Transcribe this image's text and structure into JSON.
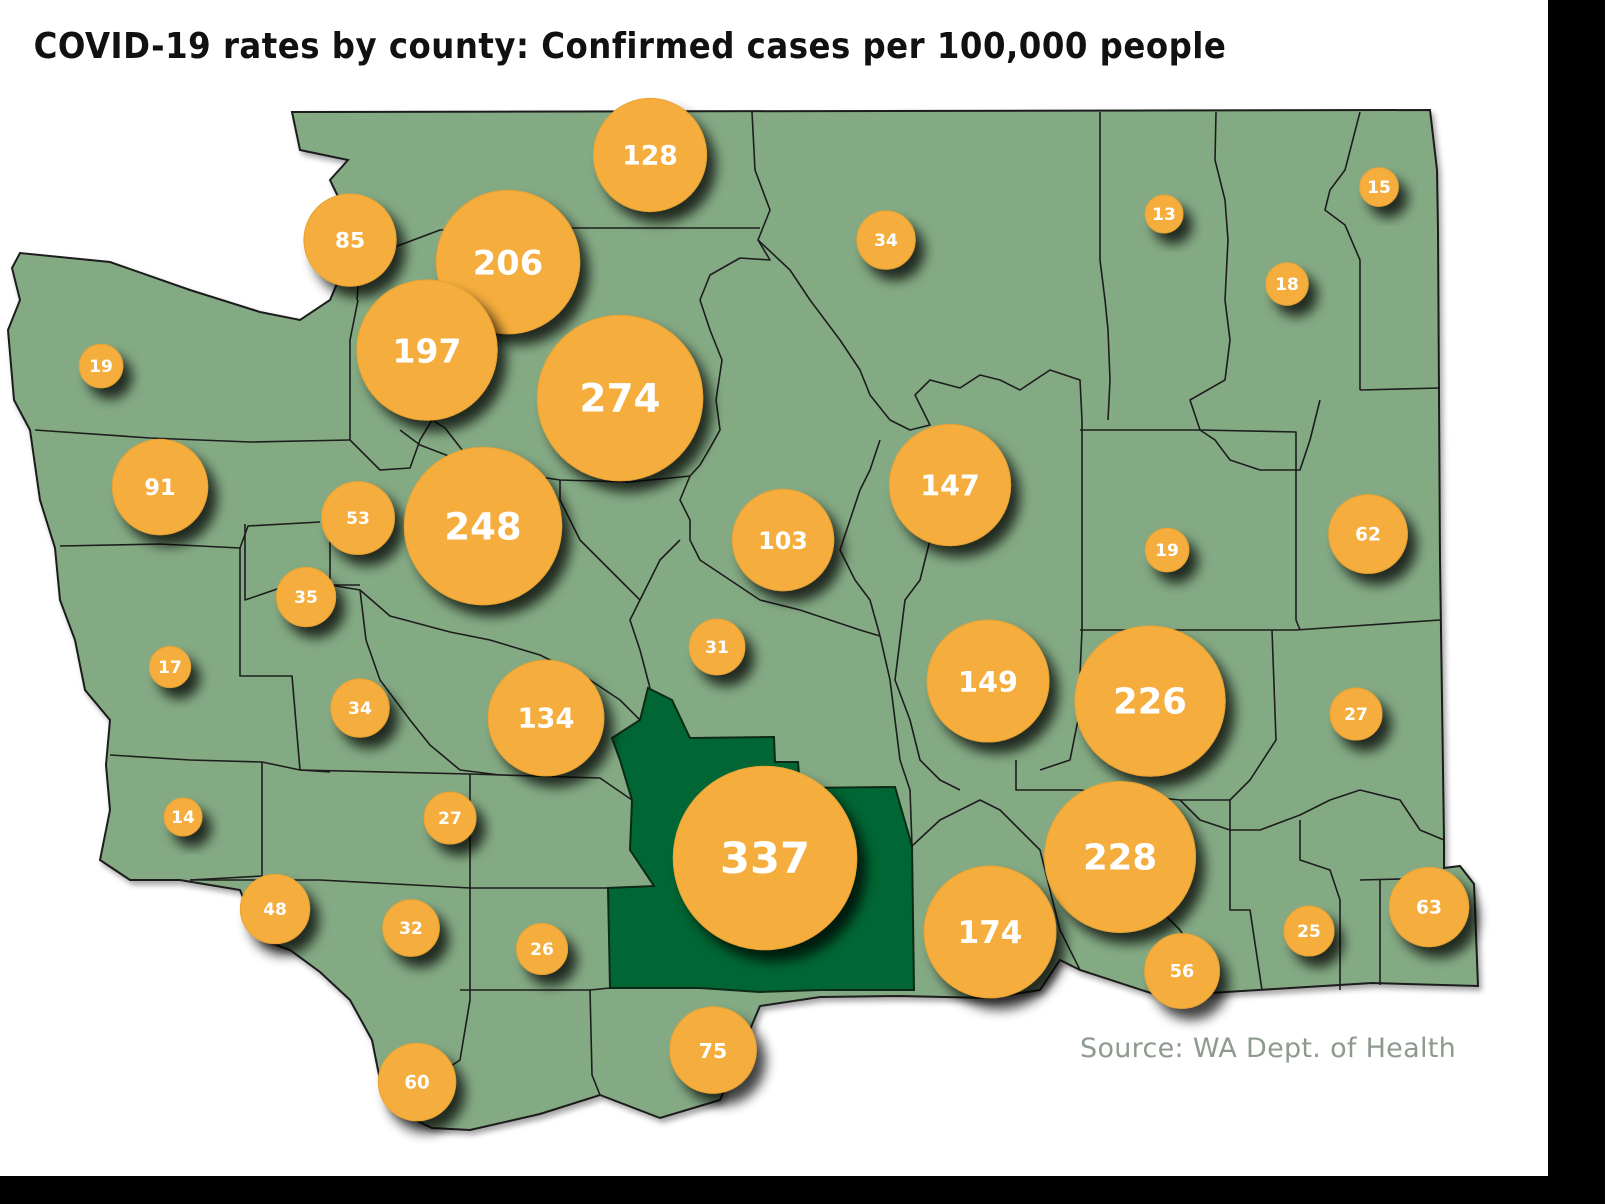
{
  "title": "COVID-19 rates by county: Confirmed cases per 100,000 people",
  "source": "Source: WA Dept. of Health",
  "colors": {
    "land": "#84aa84",
    "highlight_county": "#006633",
    "bubble": "#f5ae3c",
    "border": "#222222",
    "source_text": "#8f9a8f"
  },
  "rates": [
    {
      "value": 128
    },
    {
      "value": 85
    },
    {
      "value": 206
    },
    {
      "value": 197
    },
    {
      "value": 274
    },
    {
      "value": 19
    },
    {
      "value": 91
    },
    {
      "value": 53
    },
    {
      "value": 248
    },
    {
      "value": 35
    },
    {
      "value": 17
    },
    {
      "value": 34
    },
    {
      "value": 134
    },
    {
      "value": 14
    },
    {
      "value": 27
    },
    {
      "value": 48
    },
    {
      "value": 32
    },
    {
      "value": 26
    },
    {
      "value": 60
    },
    {
      "value": 75
    },
    {
      "value": 337
    },
    {
      "value": 31
    },
    {
      "value": 103
    },
    {
      "value": 147
    },
    {
      "value": 34
    },
    {
      "value": 13
    },
    {
      "value": 18
    },
    {
      "value": 15
    },
    {
      "value": 19
    },
    {
      "value": 62
    },
    {
      "value": 149
    },
    {
      "value": 226
    },
    {
      "value": 27
    },
    {
      "value": 228
    },
    {
      "value": 174
    },
    {
      "value": 56
    },
    {
      "value": 25
    },
    {
      "value": 63
    }
  ]
}
